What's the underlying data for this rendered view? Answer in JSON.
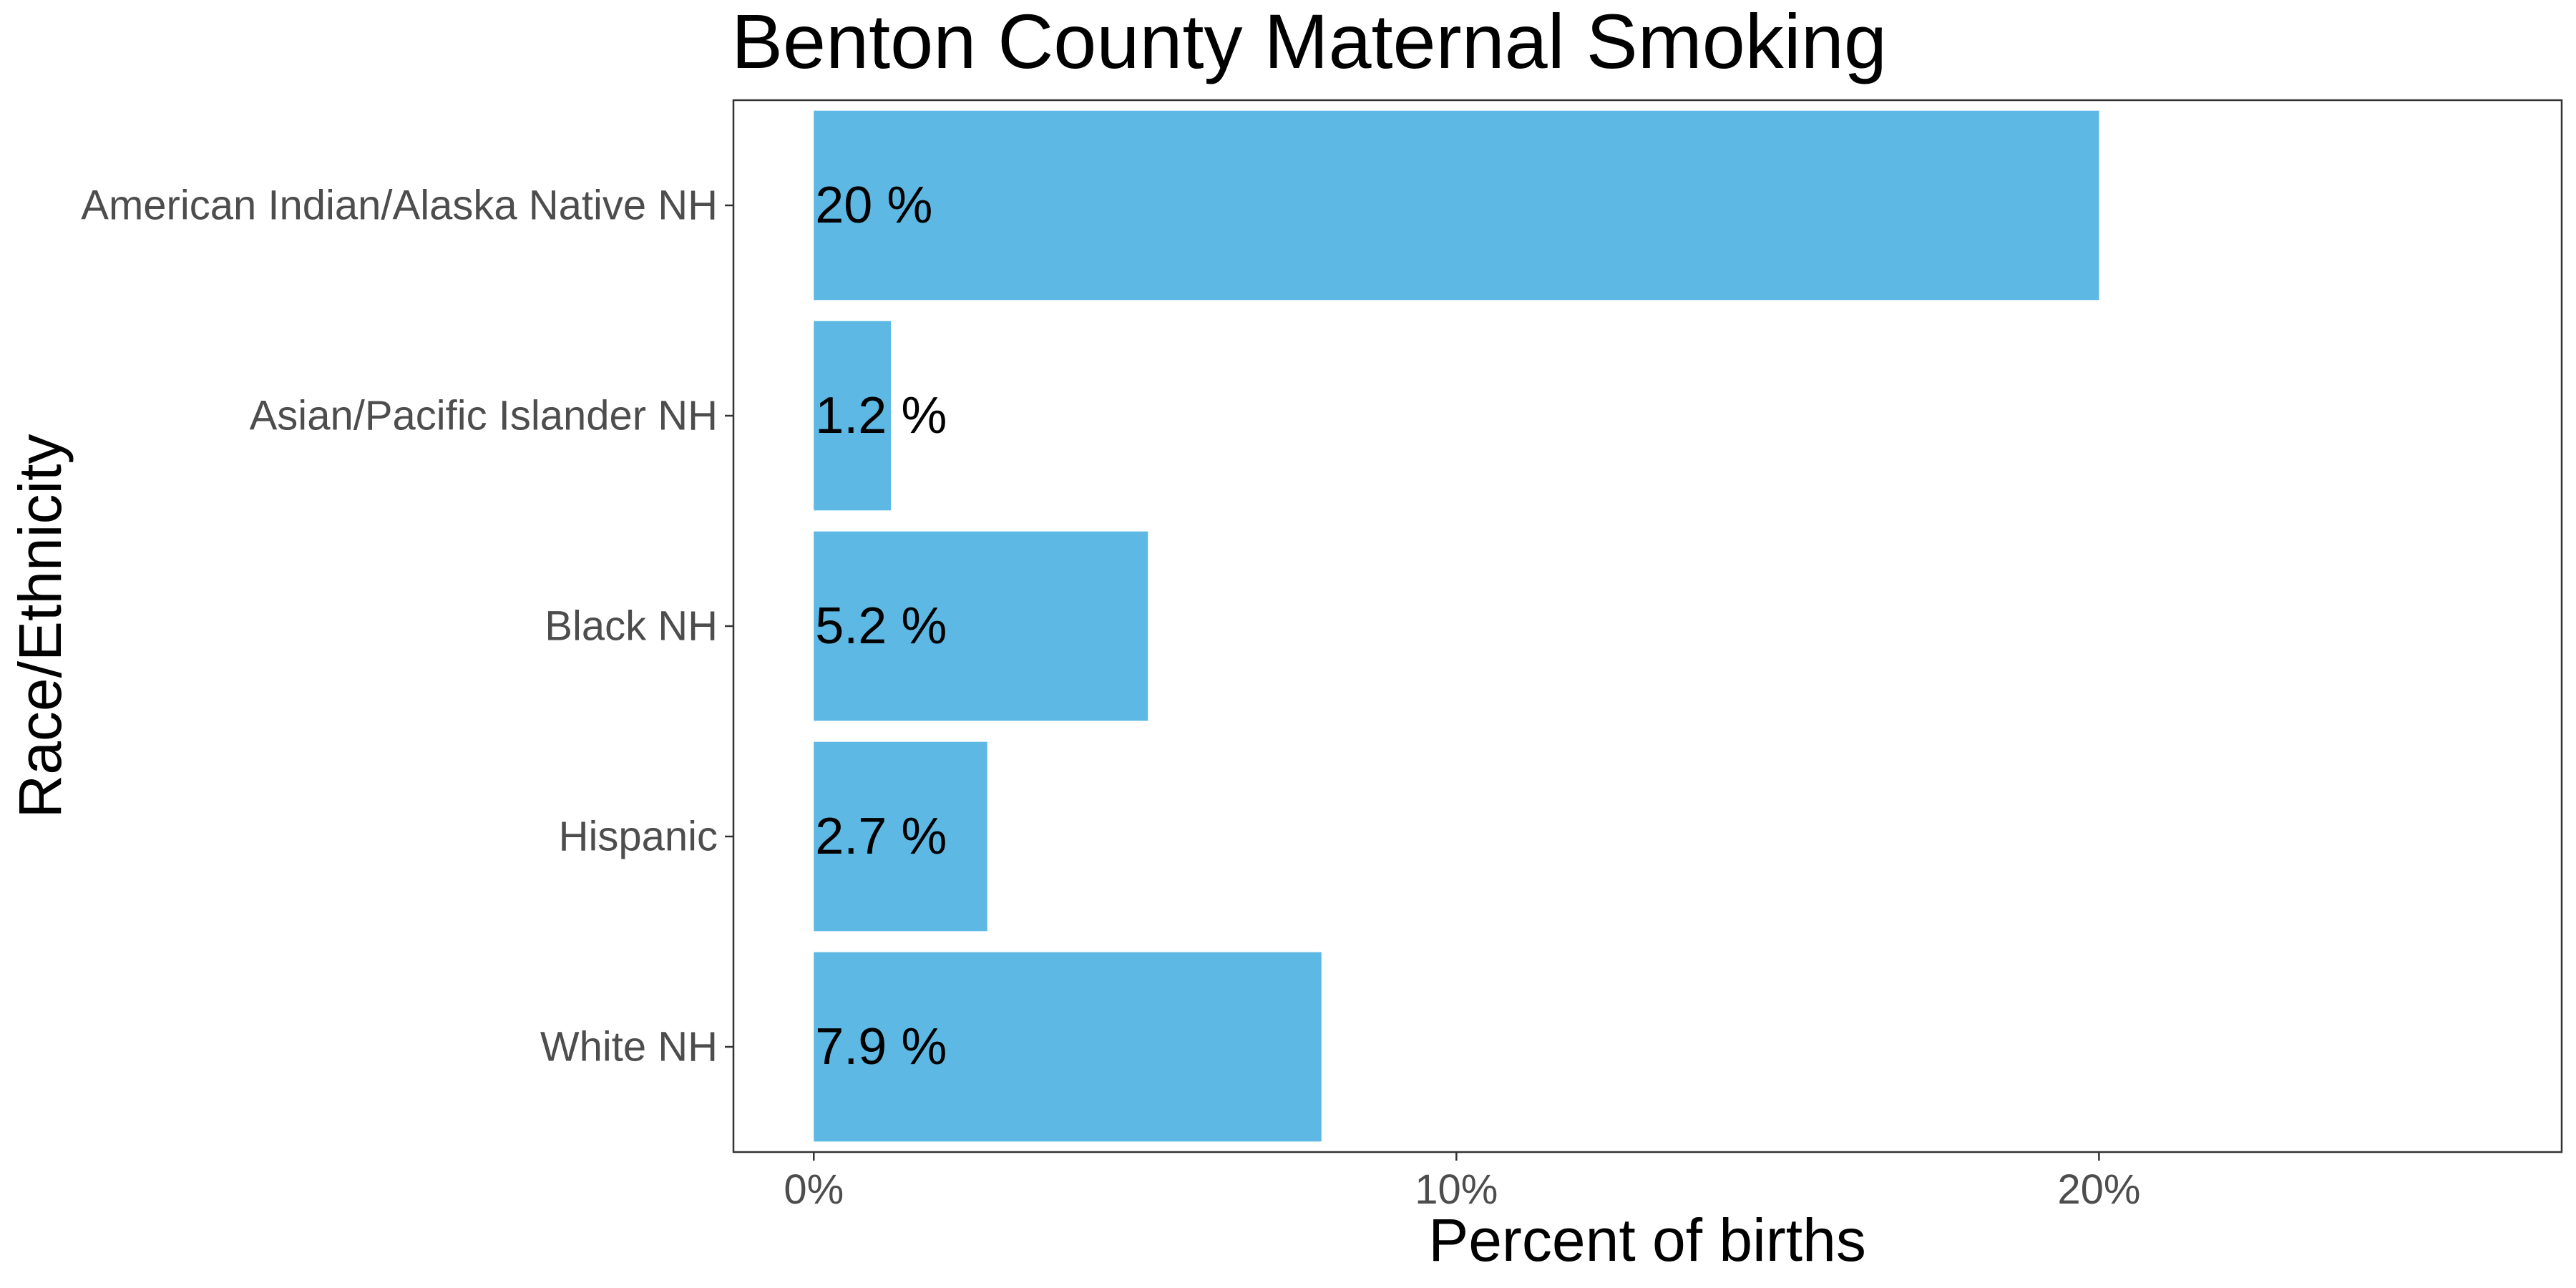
{
  "chart_data": {
    "type": "bar",
    "orientation": "horizontal",
    "title": "Benton County Maternal Smoking",
    "xlabel": "Percent of births",
    "ylabel": "Race/Ethnicity",
    "categories": [
      "American Indian/Alaska Native NH",
      "Asian/Pacific Islander NH",
      "Black NH",
      "Hispanic",
      "White NH"
    ],
    "values": [
      20,
      1.2,
      5.2,
      2.7,
      7.9
    ],
    "data_labels": [
      "20 %",
      "1.2 %",
      "5.2 %",
      "2.7 %",
      "7.9 %"
    ],
    "x_ticks": [
      0,
      10,
      20
    ],
    "x_tick_labels": [
      "0%",
      "10%",
      "20%"
    ],
    "xlim": [
      -1.25,
      27.2
    ],
    "bar_color": "#5DB8E3",
    "grid": false,
    "legend": "none"
  }
}
